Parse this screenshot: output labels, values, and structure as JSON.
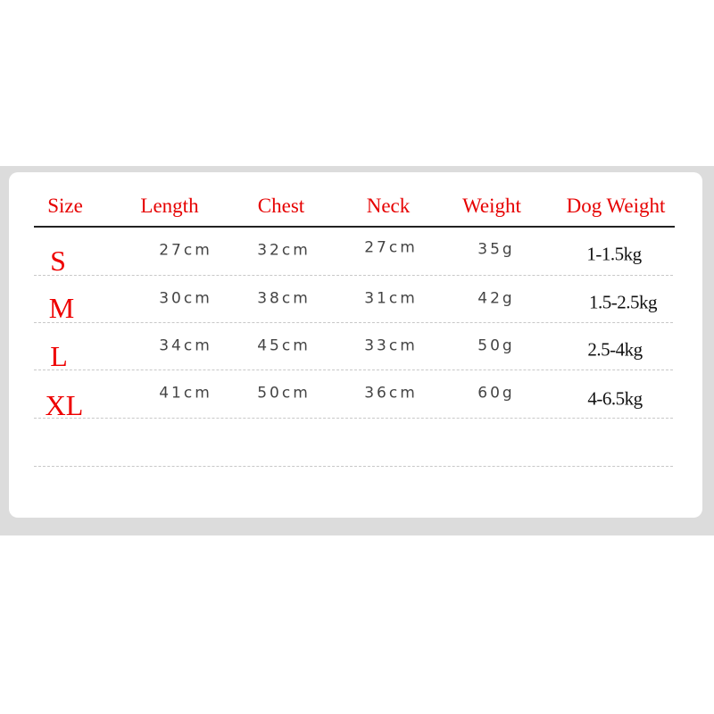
{
  "table": {
    "headers": [
      "Size",
      "Length",
      "Chest",
      "Neck",
      "Weight",
      "Dog Weight"
    ],
    "rows": [
      {
        "size": "S",
        "length": "27cm",
        "chest": "32cm",
        "neck": "27cm",
        "weight": "35g",
        "dog_weight": "1-1.5kg"
      },
      {
        "size": "M",
        "length": "30cm",
        "chest": "38cm",
        "neck": "31cm",
        "weight": "42g",
        "dog_weight": "1.5-2.5kg"
      },
      {
        "size": "L",
        "length": "34cm",
        "chest": "45cm",
        "neck": "33cm",
        "weight": "50g",
        "dog_weight": "2.5-4kg"
      },
      {
        "size": "XL",
        "length": "41cm",
        "chest": "50cm",
        "neck": "36cm",
        "weight": "60g",
        "dog_weight": "4-6.5kg"
      }
    ]
  },
  "colors": {
    "header": "#e60000",
    "size_label": "#ee0000",
    "value": "#444444",
    "background_band": "#dcdcdc"
  }
}
